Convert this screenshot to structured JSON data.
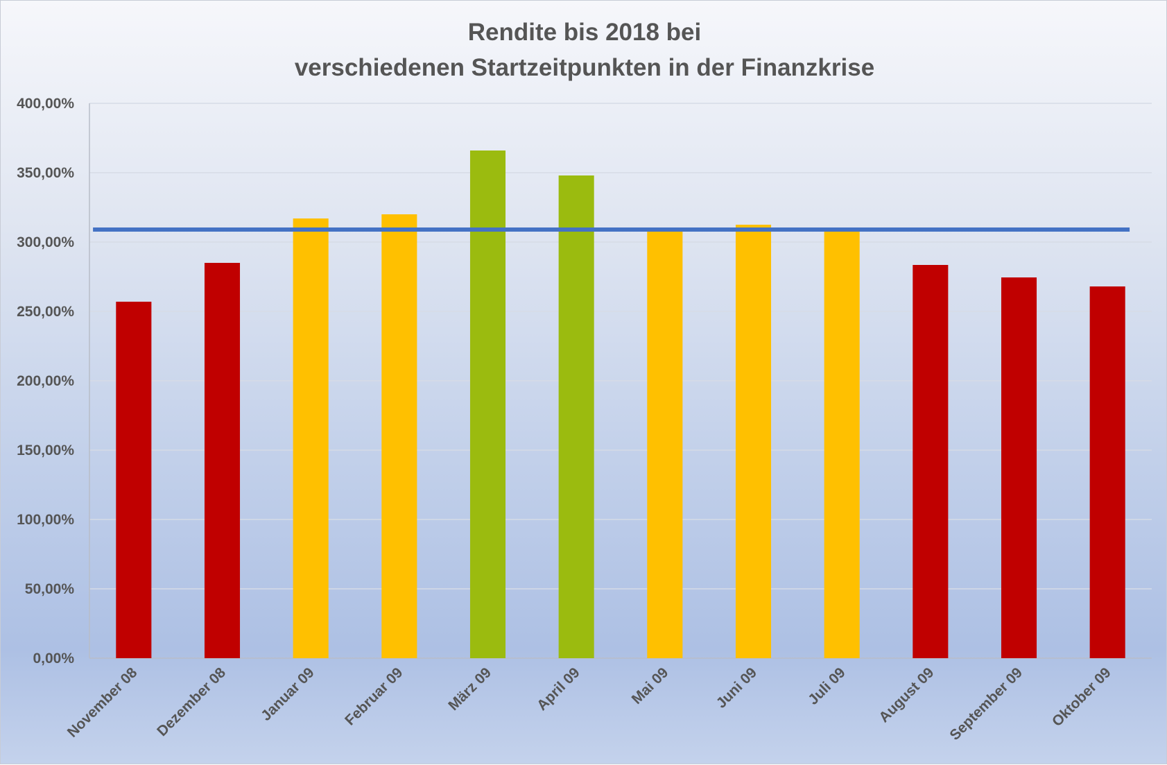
{
  "chart_data": {
    "type": "bar",
    "title_lines": [
      "Rendite bis 2018 bei",
      "verschiedenen Startzeitpunkten in der Finanzkrise"
    ],
    "categories": [
      "November 08",
      "Dezember 08",
      "Januar 09",
      "Februar 09",
      "März 09",
      "April 09",
      "Mai 09",
      "Juni 09",
      "Juli 09",
      "August 09",
      "September 09",
      "Oktober 09"
    ],
    "values": [
      257.0,
      285.0,
      317.0,
      320.0,
      366.0,
      348.0,
      309.0,
      312.5,
      309.0,
      283.5,
      274.5,
      268.0
    ],
    "bar_colors": [
      "#c00000",
      "#c00000",
      "#ffc000",
      "#ffc000",
      "#9bbb0f",
      "#9bbb0f",
      "#ffc000",
      "#ffc000",
      "#ffc000",
      "#c00000",
      "#c00000",
      "#c00000"
    ],
    "reference_line": {
      "value": 309.0,
      "color": "#4472c4"
    },
    "yticks": [
      "0,00%",
      "50,00%",
      "100,00%",
      "150,00%",
      "200,00%",
      "250,00%",
      "300,00%",
      "350,00%",
      "400,00%"
    ],
    "ylim": [
      0,
      400
    ],
    "ytick_step": 50,
    "grid": true,
    "legend": "none",
    "xlabel": "",
    "ylabel": ""
  }
}
